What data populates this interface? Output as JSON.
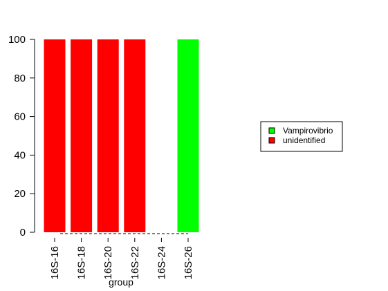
{
  "chart_data": {
    "type": "bar",
    "stacked": true,
    "categories": [
      "16S-16",
      "16S-18",
      "16S-20",
      "16S-22",
      "16S-24",
      "16S-26"
    ],
    "series": [
      {
        "name": "Vampirovibrio",
        "color": "#00ff00",
        "values": [
          0,
          0,
          0,
          0,
          0,
          100
        ]
      },
      {
        "name": "unidentified",
        "color": "#ff0000",
        "values": [
          100,
          100,
          100,
          100,
          0,
          0
        ]
      }
    ],
    "xlabel": "group",
    "ylabel": "",
    "ylim": [
      0,
      100
    ],
    "yticks": [
      0,
      20,
      40,
      60,
      80,
      100
    ],
    "grid": false,
    "legend_position": "right"
  }
}
